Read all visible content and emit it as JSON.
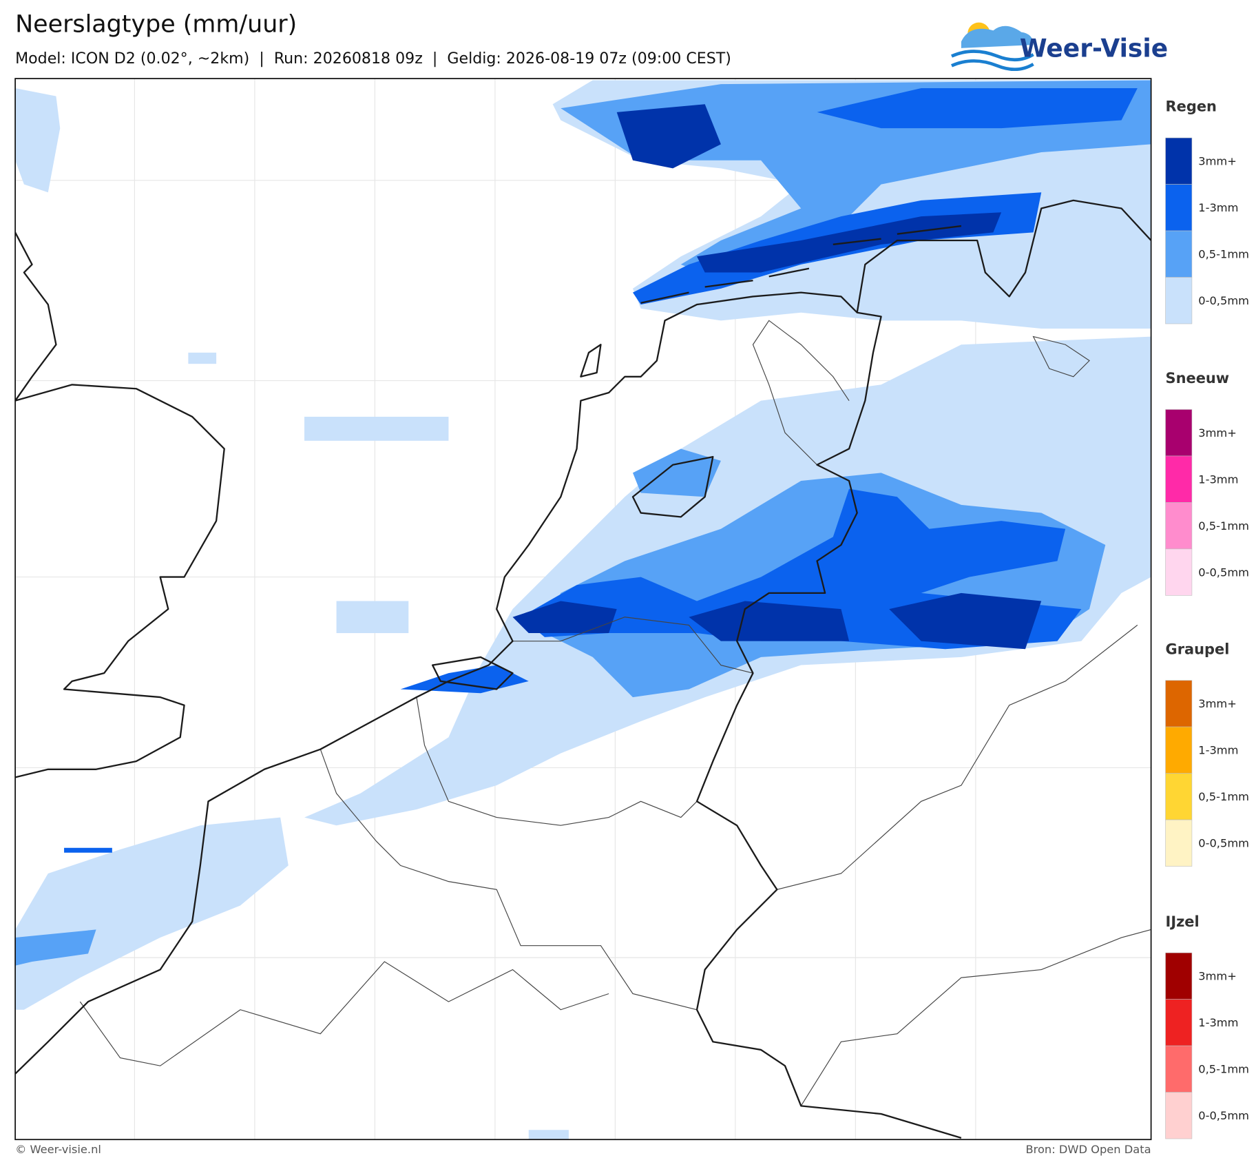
{
  "header": {
    "title": "Neerslagtype (mm/uur)",
    "subtitle": "Model: ICON D2 (0.02°, ~2km)  |  Run: 20260818 09z  |  Geldig: 2026-08-19 07z (09:00 CEST)",
    "logo": "Weer-Visie"
  },
  "legend": {
    "groups": [
      {
        "title": "Regen",
        "items": [
          {
            "label": "3mm+",
            "color": "#0033aa"
          },
          {
            "label": "1-3mm",
            "color": "#0b62ee"
          },
          {
            "label": "0,5-1mm",
            "color": "#57a2f6"
          },
          {
            "label": "0-0,5mm",
            "color": "#c9e1fb"
          }
        ]
      },
      {
        "title": "Sneeuw",
        "items": [
          {
            "label": "3mm+",
            "color": "#a8006e"
          },
          {
            "label": "1-3mm",
            "color": "#ff2aa8"
          },
          {
            "label": "0,5-1mm",
            "color": "#ff8ccd"
          },
          {
            "label": "0-0,5mm",
            "color": "#ffd6ee"
          }
        ]
      },
      {
        "title": "Graupel",
        "items": [
          {
            "label": "3mm+",
            "color": "#dd6600"
          },
          {
            "label": "1-3mm",
            "color": "#ffaa00"
          },
          {
            "label": "0,5-1mm",
            "color": "#ffd633"
          },
          {
            "label": "0-0,5mm",
            "color": "#fff3c4"
          }
        ]
      },
      {
        "title": "IJzel",
        "items": [
          {
            "label": "3mm+",
            "color": "#a00000"
          },
          {
            "label": "1-3mm",
            "color": "#ee2222"
          },
          {
            "label": "0,5-1mm",
            "color": "#ff6b6b"
          },
          {
            "label": "0-0,5mm",
            "color": "#ffd0d0"
          }
        ]
      }
    ]
  },
  "footer": {
    "left": "© Weer-visie.nl",
    "right": "Bron: DWD Open Data"
  }
}
